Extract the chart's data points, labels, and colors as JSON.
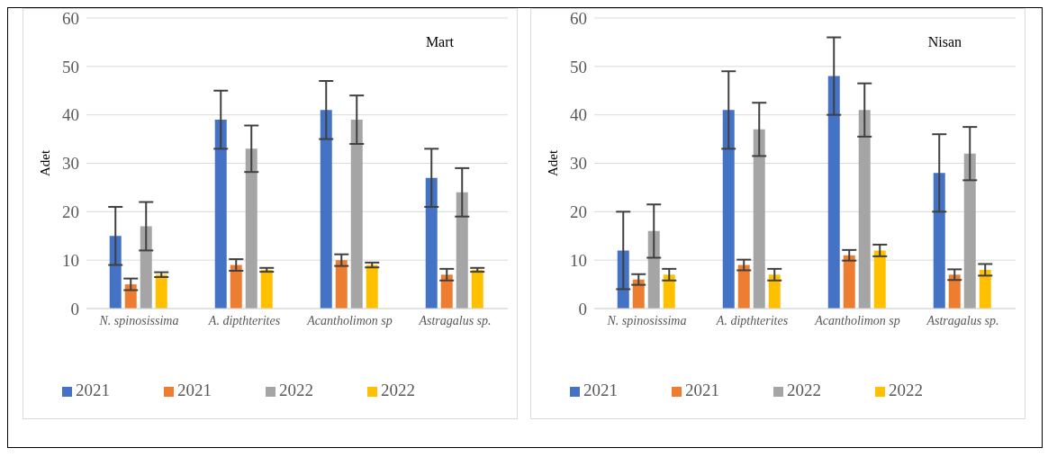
{
  "chart_data": [
    {
      "type": "bar",
      "title": "Mart",
      "ylabel": "Adet",
      "categories": [
        "N. spinosissima",
        "A. dipthterites",
        "Acantholimon sp",
        "Astragalus sp."
      ],
      "ylim": [
        0,
        60
      ],
      "yticks": [
        0,
        10,
        20,
        30,
        40,
        50,
        60
      ],
      "grid": "y",
      "legend": "bottom",
      "series": [
        {
          "name": "2021",
          "color": "#4472c4",
          "values": [
            15,
            39,
            41,
            27
          ],
          "errors": [
            6,
            6,
            6,
            6
          ]
        },
        {
          "name": "2021",
          "color": "#ed7d31",
          "values": [
            5,
            9,
            10,
            7
          ],
          "errors": [
            1.2,
            1.2,
            1.2,
            1.2
          ]
        },
        {
          "name": "2022",
          "color": "#a5a5a5",
          "values": [
            17,
            33,
            39,
            24
          ],
          "errors": [
            5,
            4.8,
            5,
            5
          ]
        },
        {
          "name": "2022",
          "color": "#ffc000",
          "values": [
            7,
            8,
            9,
            8
          ],
          "errors": [
            0.5,
            0.4,
            0.5,
            0.4
          ]
        }
      ]
    },
    {
      "type": "bar",
      "title": "Nisan",
      "ylabel": "Adet",
      "categories": [
        "N. spinosissima",
        "A. dipthterites",
        "Acantholimon sp",
        "Astragalus sp."
      ],
      "ylim": [
        0,
        60
      ],
      "yticks": [
        0,
        10,
        20,
        30,
        40,
        50,
        60
      ],
      "grid": "y",
      "legend": "bottom",
      "series": [
        {
          "name": "2021",
          "color": "#4472c4",
          "values": [
            12,
            41,
            48,
            28
          ],
          "errors": [
            8,
            8,
            8,
            8
          ]
        },
        {
          "name": "2021",
          "color": "#ed7d31",
          "values": [
            6,
            9,
            11,
            7
          ],
          "errors": [
            1.1,
            1.1,
            1.1,
            1.1
          ]
        },
        {
          "name": "2022",
          "color": "#a5a5a5",
          "values": [
            16,
            37,
            41,
            32
          ],
          "errors": [
            5.5,
            5.5,
            5.5,
            5.5
          ]
        },
        {
          "name": "2022",
          "color": "#ffc000",
          "values": [
            7,
            7,
            12,
            8
          ],
          "errors": [
            1.2,
            1.2,
            1.2,
            1.2
          ]
        }
      ]
    }
  ]
}
